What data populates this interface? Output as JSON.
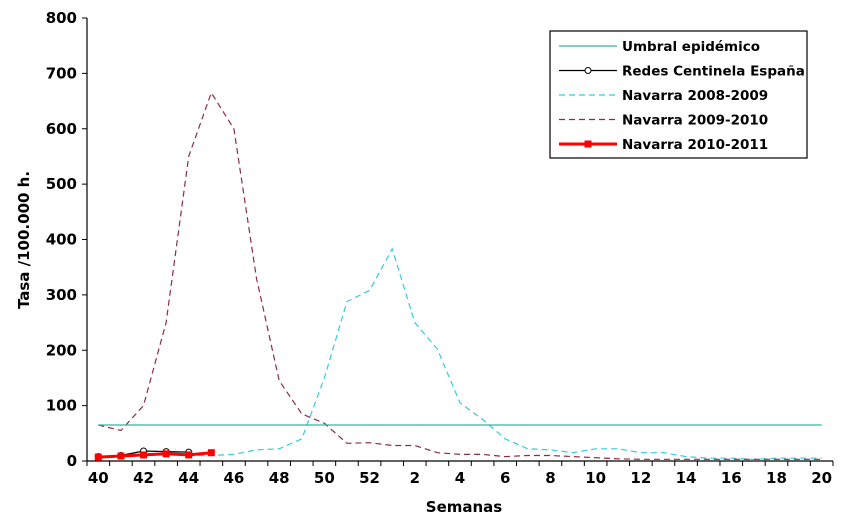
{
  "chart_data": {
    "type": "line",
    "xlabel": "Semanas",
    "ylabel": "Tasa /100.000 h.",
    "ylim": [
      0,
      800
    ],
    "yticks": [
      "0",
      "100",
      "200",
      "300",
      "400",
      "500",
      "600",
      "700",
      "800"
    ],
    "x_categories": [
      "40",
      "41",
      "42",
      "43",
      "44",
      "45",
      "46",
      "47",
      "48",
      "49",
      "50",
      "51",
      "52",
      "1",
      "2",
      "3",
      "4",
      "5",
      "6",
      "7",
      "8",
      "9",
      "10",
      "11",
      "12",
      "13",
      "14",
      "15",
      "16",
      "17",
      "18",
      "19",
      "20"
    ],
    "xtick_labels": [
      "40",
      "42",
      "44",
      "46",
      "48",
      "50",
      "52",
      "2",
      "4",
      "6",
      "8",
      "10",
      "12",
      "14",
      "16",
      "18",
      "20"
    ],
    "grid": false,
    "legend_position": "top-right",
    "series": [
      {
        "name": "Umbral epidémico",
        "color": "#33b3a6",
        "style": "solid",
        "values": [
          65,
          65,
          65,
          65,
          65,
          65,
          65,
          65,
          65,
          65,
          65,
          65,
          65,
          65,
          65,
          65,
          65,
          65,
          65,
          65,
          65,
          65,
          65,
          65,
          65,
          65,
          65,
          65,
          65,
          65,
          65,
          65,
          65
        ]
      },
      {
        "name": "Redes Centinela España",
        "color": "#000000",
        "style": "solid-markers-circle",
        "values": [
          8,
          10,
          18,
          17,
          16,
          null,
          null,
          null,
          null,
          null,
          null,
          null,
          null,
          null,
          null,
          null,
          null,
          null,
          null,
          null,
          null,
          null,
          null,
          null,
          null,
          null,
          null,
          null,
          null,
          null,
          null,
          null,
          null
        ]
      },
      {
        "name": "Navarra 2008-2009",
        "color": "#33ccdd",
        "style": "dashed",
        "values": [
          5,
          8,
          10,
          12,
          10,
          10,
          12,
          20,
          22,
          40,
          150,
          288,
          308,
          383,
          250,
          202,
          105,
          75,
          40,
          22,
          20,
          15,
          22,
          22,
          15,
          15,
          8,
          5,
          5,
          3,
          5,
          5,
          5
        ]
      },
      {
        "name": "Navarra 2009-2010",
        "color": "#8b2c45",
        "style": "dashed",
        "values": [
          65,
          55,
          100,
          250,
          550,
          665,
          600,
          330,
          145,
          85,
          68,
          32,
          33,
          28,
          28,
          15,
          12,
          12,
          8,
          10,
          10,
          8,
          6,
          4,
          3,
          3,
          3,
          3,
          3,
          3,
          3,
          3,
          3
        ]
      },
      {
        "name": "Navarra 2010-2011",
        "color": "#ff0000",
        "style": "thick-markers-square",
        "values": [
          7,
          9,
          11,
          13,
          11,
          15,
          null,
          null,
          null,
          null,
          null,
          null,
          null,
          null,
          null,
          null,
          null,
          null,
          null,
          null,
          null,
          null,
          null,
          null,
          null,
          null,
          null,
          null,
          null,
          null,
          null,
          null,
          null
        ]
      }
    ]
  }
}
